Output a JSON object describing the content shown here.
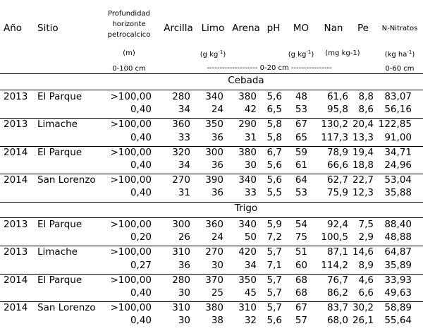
{
  "header": {
    "anio": "Año",
    "sitio": "Sitio",
    "prof_line1": "Profundidad",
    "prof_line2": "horizonte",
    "prof_line3": "petrocalcico",
    "prof_unit": "(m)",
    "prof_range": "0-100 cm",
    "arcilla": "Arcilla",
    "limo": "Limo",
    "arena": "Arena",
    "ph": "pH",
    "mo": "MO",
    "nan": "Nan",
    "pe": "Pe",
    "nitratos": "N-Nitratos",
    "unit_texture": "(g kg",
    "unit_texture_sup": "-1",
    "unit_mo": "(g kg",
    "unit_mo_sup": "-1",
    "unit_nan": "(mg kg-1)",
    "unit_nitratos": "(kg ha",
    "unit_nitratos_sup": "-1",
    "depth_mid": "-------------------- 0-20 cm ----------------",
    "depth_right": "0-60 cm"
  },
  "sections": [
    {
      "title": "Cebada",
      "groups": [
        {
          "year": "2013",
          "site": "El Parque",
          "rows": [
            [
              ">100,00",
              "280",
              "340",
              "380",
              "5,6",
              "48",
              "61,6",
              "8,8",
              "83,07"
            ],
            [
              "0,40",
              "34",
              "24",
              "42",
              "6,5",
              "53",
              "95,8",
              "8,6",
              "56,16"
            ]
          ]
        },
        {
          "year": "2013",
          "site": "Limache",
          "rows": [
            [
              ">100,00",
              "360",
              "350",
              "290",
              "5,8",
              "67",
              "130,2",
              "20,4",
              "122,85"
            ],
            [
              "0,40",
              "33",
              "36",
              "31",
              "5,8",
              "65",
              "117,3",
              "13,3",
              "91,00"
            ]
          ]
        },
        {
          "year": "2014",
          "site": "El Parque",
          "rows": [
            [
              ">100,00",
              "320",
              "300",
              "380",
              "6,7",
              "59",
              "78,9",
              "19,4",
              "34,71"
            ],
            [
              "0,40",
              "34",
              "36",
              "30",
              "5,6",
              "61",
              "66,6",
              "18,8",
              "24,96"
            ]
          ]
        },
        {
          "year": "2014",
          "site": "San Lorenzo",
          "rows": [
            [
              ">100,00",
              "270",
              "390",
              "340",
              "5,6",
              "64",
              "62,7",
              "22,7",
              "53,04"
            ],
            [
              "0,40",
              "31",
              "36",
              "33",
              "5,5",
              "53",
              "75,9",
              "12,3",
              "35,88"
            ]
          ]
        }
      ]
    },
    {
      "title": "Trigo",
      "groups": [
        {
          "year": "2013",
          "site": "El Parque",
          "rows": [
            [
              ">100,00",
              "300",
              "360",
              "340",
              "5,9",
              "54",
              "92,4",
              "7,5",
              "88,40"
            ],
            [
              "0,20",
              "26",
              "24",
              "50",
              "7,2",
              "75",
              "100,5",
              "2,9",
              "48,88"
            ]
          ]
        },
        {
          "year": "2013",
          "site": "Limache",
          "rows": [
            [
              ">100,00",
              "310",
              "270",
              "420",
              "5,7",
              "51",
              "87,1",
              "14,6",
              "64,87"
            ],
            [
              "0,27",
              "36",
              "30",
              "34",
              "7,1",
              "60",
              "114,2",
              "8,9",
              "35,89"
            ]
          ]
        },
        {
          "year": "2014",
          "site": "El Parque",
          "rows": [
            [
              ">100,00",
              "280",
              "370",
              "350",
              "5,7",
              "68",
              "76,7",
              "4,6",
              "33,93"
            ],
            [
              "0,40",
              "30",
              "25",
              "45",
              "5,7",
              "68",
              "86,2",
              "6,6",
              "49,63"
            ]
          ]
        },
        {
          "year": "2014",
          "site": "San Lorenzo",
          "rows": [
            [
              ">100,00",
              "310",
              "380",
              "310",
              "5,7",
              "67",
              "83,7",
              "30,2",
              "58,89"
            ],
            [
              "0,40",
              "30",
              "38",
              "32",
              "5,6",
              "57",
              "68,0",
              "26,1",
              "55,64"
            ]
          ]
        }
      ]
    }
  ]
}
